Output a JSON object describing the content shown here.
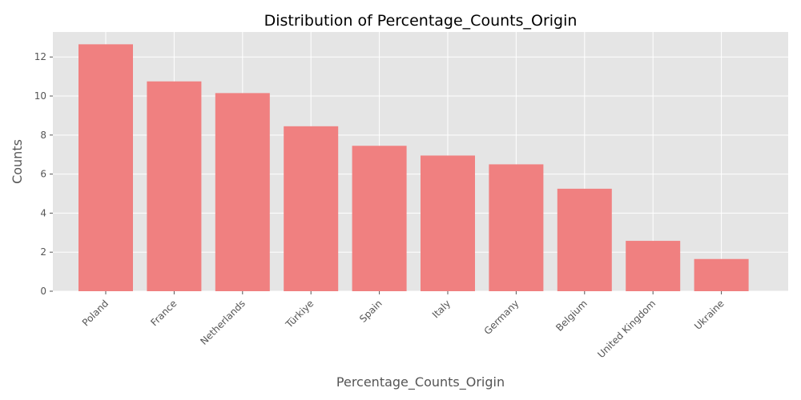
{
  "chart_data": {
    "type": "bar",
    "title": "Distribution of Percentage_Counts_Origin",
    "xlabel": "Percentage_Counts_Origin",
    "ylabel": "Counts",
    "categories": [
      "Poland",
      "France",
      "Netherlands",
      "Türkiye",
      "Spain",
      "Italy",
      "Germany",
      "Belgium",
      "United Kingdom",
      "Ukraine"
    ],
    "values": [
      12.65,
      10.75,
      10.15,
      8.45,
      7.45,
      6.95,
      6.5,
      5.25,
      2.58,
      1.65
    ],
    "ylim": [
      0,
      13.28
    ],
    "yticks": [
      0,
      2,
      4,
      6,
      8,
      10,
      12
    ],
    "grid": true,
    "legend": "none",
    "colors": {
      "bar": "#f08080",
      "plot_background": "#e5e5e5",
      "grid": "#ffffff"
    }
  }
}
